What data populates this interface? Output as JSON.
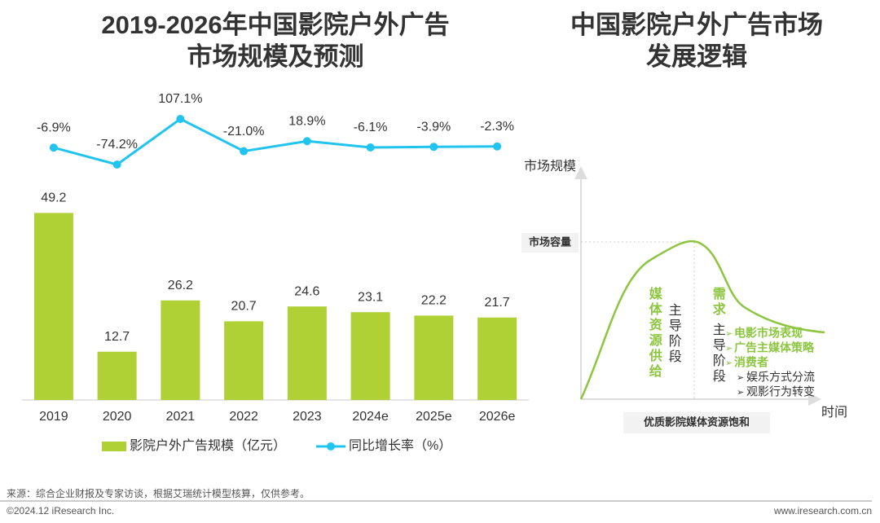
{
  "chart_data": {
    "type": "bar",
    "title": [
      "2019-2026年中国影院户外广告",
      "市场规模及预测"
    ],
    "categories": [
      "2019",
      "2020",
      "2021",
      "2022",
      "2023",
      "2024e",
      "2025e",
      "2026e"
    ],
    "series": [
      {
        "name": "影院户外广告规模（亿元）",
        "type": "bar",
        "color": "#afd136",
        "values": [
          49.2,
          12.7,
          26.2,
          20.7,
          24.6,
          23.1,
          22.2,
          21.7
        ]
      },
      {
        "name": "同比增长率（%）",
        "type": "line",
        "axis": "y2",
        "color": "#21c4ef",
        "values": [
          -6.9,
          -74.2,
          107.1,
          -21.0,
          18.9,
          -6.1,
          -3.9,
          -2.3
        ],
        "value_labels": [
          "-6.9%",
          "-74.2%",
          "107.1%",
          "-21.0%",
          "18.9%",
          "-6.1%",
          "-3.9%",
          "-2.3%"
        ]
      }
    ],
    "ylim": [
      0,
      60
    ],
    "y2lim": [
      -100,
      120
    ]
  },
  "diagram": {
    "title": [
      "中国影院户外广告市场",
      "发展逻辑"
    ],
    "y_label": "市场规模",
    "x_label": "时间",
    "capacity": "市场容量",
    "saturation": "优质影院媒体资源饱和",
    "phase1": {
      "driver": "媒体资源供给",
      "stage": "主导阶段"
    },
    "phase2": {
      "driver": "需求",
      "stage": "主导阶段",
      "factors": [
        "电影市场表现",
        "广告主媒体策略",
        "消费者"
      ],
      "sub_factors": [
        "娱乐方式分流",
        "观影行为转变"
      ]
    }
  },
  "footer": {
    "source": "来源：综合企业财报及专家访谈，根据艾瑞统计模型核算，仅供参考。",
    "copyright": "©2024.12 iResearch Inc.",
    "url": "www.iresearch.com.cn"
  }
}
